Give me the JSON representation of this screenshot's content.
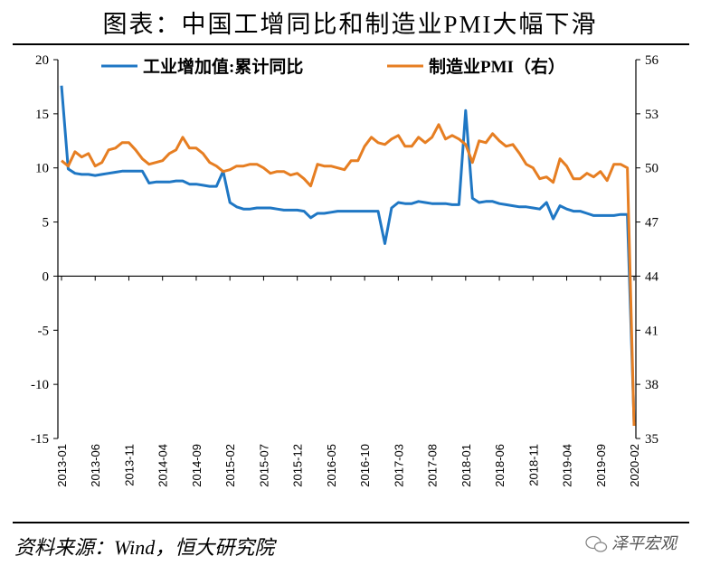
{
  "title": "图表：中国工增同比和制造业PMI大幅下滑",
  "source": "资料来源：Wind，恒大研究院",
  "watermark": "泽平宏观",
  "chart_data": {
    "type": "line",
    "title": "图表：中国工增同比和制造业PMI大幅下滑",
    "x_start": "2013-01",
    "x_end": "2020-02",
    "x_tick_labels": [
      "2013-01",
      "2013-06",
      "2013-11",
      "2014-04",
      "2014-09",
      "2015-02",
      "2015-07",
      "2015-12",
      "2016-05",
      "2016-10",
      "2017-03",
      "2017-08",
      "2018-01",
      "2018-06",
      "2018-11",
      "2019-04",
      "2019-09",
      "2020-02"
    ],
    "left_axis": {
      "ylim": [
        -15,
        20
      ],
      "ticks": [
        20,
        15,
        10,
        5,
        0,
        -5,
        -10,
        -15
      ]
    },
    "right_axis": {
      "ylim": [
        35,
        56
      ],
      "ticks": [
        56,
        53,
        50,
        47,
        44,
        41,
        38,
        35
      ]
    },
    "grid": false,
    "legend_placement": "top",
    "series": [
      {
        "name": "工业增加值:累计同比",
        "axis": "left",
        "color": "#1f77c4",
        "values": [
          17.6,
          9.9,
          9.5,
          9.4,
          9.4,
          9.3,
          9.4,
          9.5,
          9.6,
          9.7,
          9.7,
          9.7,
          9.7,
          8.6,
          8.7,
          8.7,
          8.7,
          8.8,
          8.8,
          8.5,
          8.5,
          8.4,
          8.3,
          8.3,
          9.7,
          6.8,
          6.4,
          6.2,
          6.2,
          6.3,
          6.3,
          6.3,
          6.2,
          6.1,
          6.1,
          6.1,
          6.0,
          5.4,
          5.8,
          5.8,
          5.9,
          6.0,
          6.0,
          6.0,
          6.0,
          6.0,
          6.0,
          6.0,
          3.0,
          6.3,
          6.8,
          6.7,
          6.7,
          6.9,
          6.8,
          6.7,
          6.7,
          6.7,
          6.6,
          6.6,
          15.3,
          7.2,
          6.8,
          6.9,
          6.9,
          6.7,
          6.6,
          6.5,
          6.4,
          6.4,
          6.3,
          6.2,
          6.8,
          5.3,
          6.5,
          6.2,
          6.0,
          6.0,
          5.8,
          5.6,
          5.6,
          5.6,
          5.6,
          5.7,
          5.7,
          -13.5
        ]
      },
      {
        "name": "制造业PMI（右）",
        "axis": "right",
        "color": "#e67e22",
        "values": [
          50.4,
          50.1,
          50.9,
          50.6,
          50.8,
          50.1,
          50.3,
          51.0,
          51.1,
          51.4,
          51.4,
          51.0,
          50.5,
          50.2,
          50.3,
          50.4,
          50.8,
          51.0,
          51.7,
          51.1,
          51.1,
          50.8,
          50.3,
          50.1,
          49.8,
          49.9,
          50.1,
          50.1,
          50.2,
          50.2,
          50.0,
          49.7,
          49.8,
          49.8,
          49.6,
          49.7,
          49.4,
          49.0,
          50.2,
          50.1,
          50.1,
          50.0,
          49.9,
          50.4,
          50.4,
          51.2,
          51.7,
          51.4,
          51.3,
          51.6,
          51.8,
          51.2,
          51.2,
          51.7,
          51.4,
          51.7,
          52.4,
          51.6,
          51.8,
          51.6,
          51.3,
          50.3,
          51.5,
          51.4,
          51.9,
          51.5,
          51.2,
          51.3,
          50.8,
          50.2,
          50.0,
          49.4,
          49.5,
          49.2,
          50.5,
          50.1,
          49.4,
          49.4,
          49.7,
          49.5,
          49.8,
          49.3,
          50.2,
          50.2,
          50.0,
          35.7
        ]
      }
    ]
  }
}
